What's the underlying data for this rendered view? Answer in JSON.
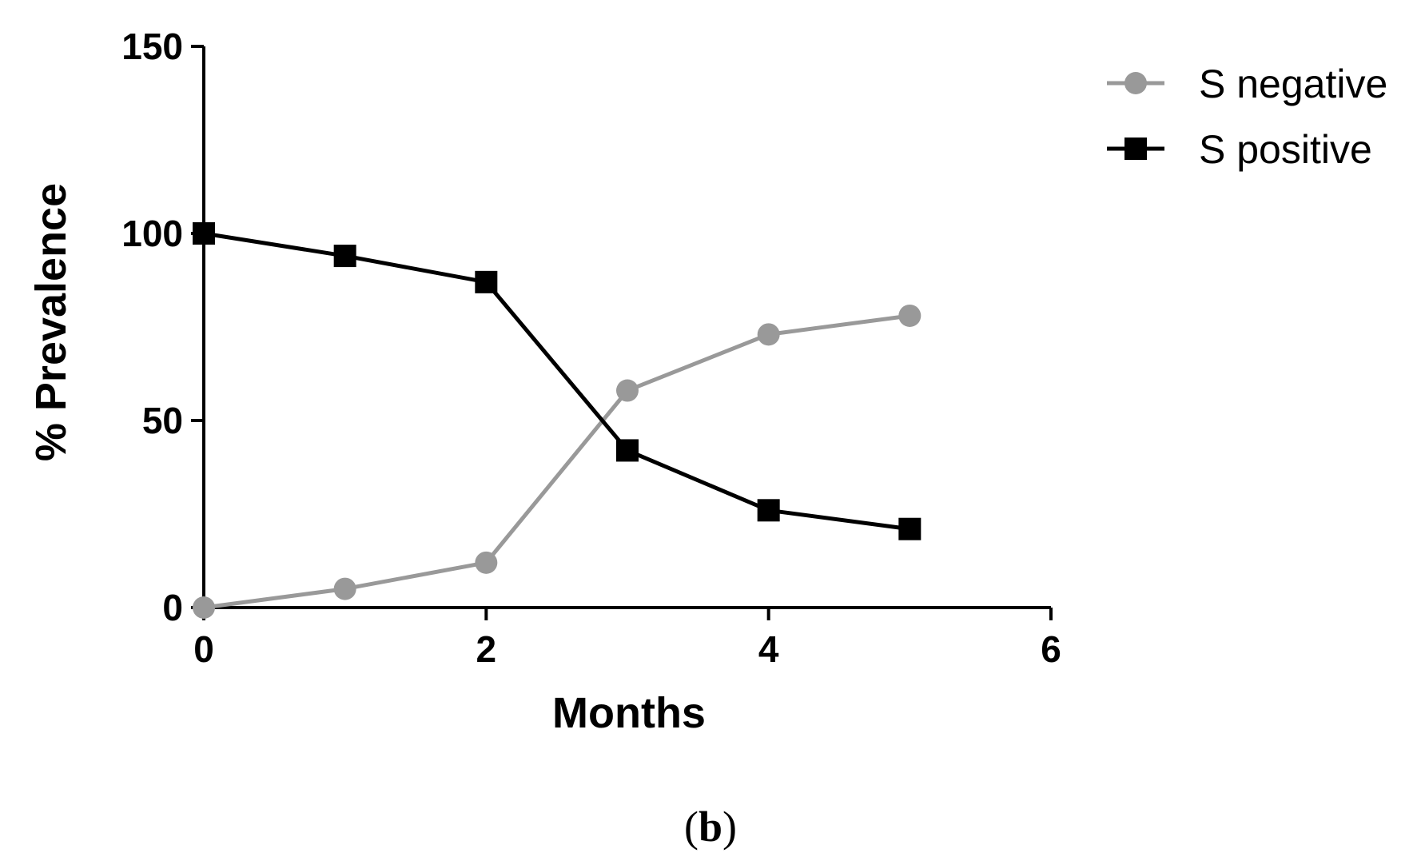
{
  "chart_data": {
    "type": "line",
    "title": "",
    "xlabel": "Months",
    "ylabel": "% Prevalence",
    "xlim": [
      0,
      6
    ],
    "ylim": [
      0,
      150
    ],
    "xticks": [
      "0",
      "2",
      "4",
      "6"
    ],
    "yticks": [
      "0",
      "50",
      "100",
      "150"
    ],
    "grid": false,
    "legend_position": "top-right",
    "series": [
      {
        "name": "S negative",
        "color": "#999999",
        "marker": "circle",
        "x": [
          0,
          1,
          2,
          3,
          4,
          5
        ],
        "y": [
          0,
          5,
          12,
          58,
          73,
          78
        ]
      },
      {
        "name": "S positive",
        "color": "#000000",
        "marker": "square",
        "x": [
          0,
          1,
          2,
          3,
          4,
          5
        ],
        "y": [
          100,
          94,
          87,
          42,
          26,
          21
        ]
      }
    ],
    "panel_label": {
      "open": "(",
      "letter": "b",
      "close": ")"
    }
  }
}
